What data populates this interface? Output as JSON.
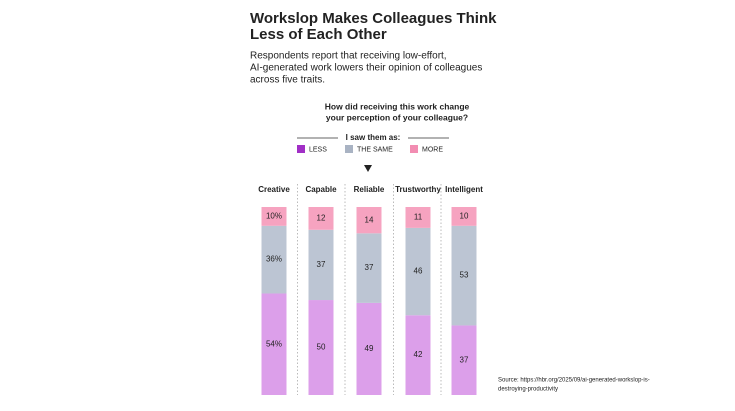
{
  "chart_data": {
    "type": "stacked_bar",
    "title": [
      "Workslop Makes Colleagues Think",
      "Less of Each Other"
    ],
    "subtitle": [
      "Respondents report that receiving low-effort,",
      "AI-generated work lowers their opinion of colleagues",
      "across five traits."
    ],
    "question": [
      "How did receiving this work change",
      "your perception of your colleague?"
    ],
    "legend_title": "I saw them as:",
    "categories": [
      "Creative",
      "Capable",
      "Reliable",
      "Trustworthy",
      "Intelligent"
    ],
    "series": [
      {
        "name": "LESS",
        "color": "#dc9fea",
        "legend_color": "#a12fc6",
        "values": [
          54,
          50,
          49,
          42,
          37
        ],
        "value_labels": [
          "54%",
          "50",
          "49",
          "42",
          "37"
        ]
      },
      {
        "name": "THE SAME",
        "color": "#bcc5d3",
        "legend_color": "#a9b3c3",
        "values": [
          36,
          37,
          37,
          46,
          53
        ],
        "value_labels": [
          "36%",
          "37",
          "37",
          "46",
          "53"
        ]
      },
      {
        "name": "MORE",
        "color": "#f6a3c0",
        "legend_color": "#f28db2",
        "values": [
          10,
          12,
          14,
          11,
          10
        ],
        "value_labels": [
          "10%",
          "12",
          "14",
          "11",
          "10"
        ]
      }
    ],
    "source": [
      "Source: https://hbr.org/2025/09/ai-generated-workslop-is-",
      "destroying-productivity"
    ]
  }
}
